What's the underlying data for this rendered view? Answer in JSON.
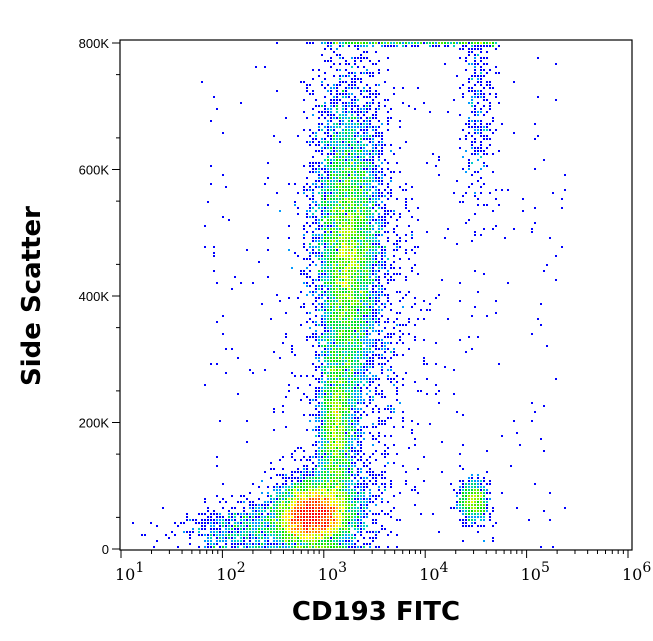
{
  "chart_data": {
    "type": "scatter",
    "subtype": "flow-cytometry density dot plot",
    "xlabel": "CD193 FITC",
    "ylabel": "Side Scatter",
    "x_scale": "log",
    "xlim": [
      10,
      1000000
    ],
    "ylim": [
      0,
      800000
    ],
    "x_ticks": [
      {
        "base": "10",
        "exp": "1"
      },
      {
        "base": "10",
        "exp": "2"
      },
      {
        "base": "10",
        "exp": "3"
      },
      {
        "base": "10",
        "exp": "4"
      },
      {
        "base": "10",
        "exp": "5"
      },
      {
        "base": "10",
        "exp": "6"
      }
    ],
    "y_ticks": [
      "0",
      "200K",
      "400K",
      "600K",
      "800K"
    ],
    "y_tick_values": [
      0,
      200000,
      400000,
      600000,
      800000
    ],
    "colormap": [
      "#0000ff",
      "#00c8ff",
      "#00e000",
      "#ffff00",
      "#ff0000"
    ],
    "populations": [
      {
        "x_center": 750,
        "y_center": 55000,
        "density": "highest"
      },
      {
        "x_center": 1700,
        "y_center": 480000,
        "density": "high"
      },
      {
        "x_center": 1300,
        "y_center": 180000,
        "density": "medium"
      },
      {
        "x_center": 30000,
        "y_center": 75000,
        "density": "medium"
      },
      {
        "x_center": 30000,
        "y_center": 700000,
        "density": "low"
      }
    ]
  }
}
